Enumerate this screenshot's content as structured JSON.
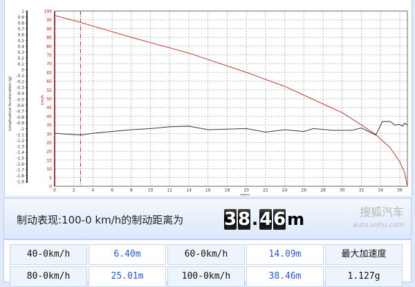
{
  "chart_data": {
    "type": "line",
    "xlabel": "meters",
    "ylabel_left": "Longitudinal Acceleration (g)",
    "ylabel_right": "km/h",
    "x_ticks": [
      0,
      2,
      4,
      6,
      8,
      10,
      12,
      14,
      16,
      18,
      20,
      22,
      24,
      26,
      28,
      30,
      32,
      34,
      36
    ],
    "xlim": [
      0,
      36.8
    ],
    "speed_ylim": [
      0,
      100
    ],
    "speed_ticks": [
      0,
      5,
      10,
      15,
      20,
      25,
      30,
      35,
      40,
      45,
      50,
      55,
      60,
      65,
      70,
      75,
      80,
      85,
      90,
      95,
      100
    ],
    "accel_ylim": [
      -1.9,
      1
    ],
    "accel_ticks": [
      "1",
      "0.9",
      "0.8",
      "0.7",
      "0.6",
      "0.5",
      "0.4",
      "0.3",
      "0.2",
      "0.1",
      "0",
      "-0.1",
      "-0.2",
      "-0.3",
      "-0.4",
      "-0.5",
      "-0.6",
      "-0.7",
      "-0.8",
      "-0.9",
      "-1",
      "-1.1",
      "-1.2",
      "-1.3",
      "-1.4",
      "-1.5",
      "-1.6",
      "-1.7",
      "-1.8",
      "-1.9"
    ],
    "grid": true,
    "marker_x": 2.7,
    "series": [
      {
        "key": "speed",
        "color": "#c83232",
        "x": [
          0,
          2.7,
          8,
          14,
          20,
          24,
          28,
          30,
          32,
          33.5,
          35,
          36,
          36.5,
          36.8
        ],
        "y": [
          97.5,
          93.5,
          85,
          76,
          65,
          57,
          47,
          42,
          35,
          29.5,
          22,
          14,
          8,
          0
        ]
      },
      {
        "key": "accel",
        "color": "#333333",
        "x": [
          0,
          2.7,
          4,
          8,
          10,
          12,
          14,
          16,
          20,
          22,
          24,
          26,
          27,
          29,
          31,
          32,
          33.5,
          34.2,
          35,
          35.5,
          36,
          36.3,
          36.5,
          36.8
        ],
        "y": [
          -1.08,
          -1.11,
          -1.08,
          -1.02,
          -1.0,
          -0.97,
          -0.96,
          -1.02,
          -1.0,
          -1.06,
          -1.02,
          -1.05,
          -1.0,
          -1.03,
          -1.03,
          -0.99,
          -1.11,
          -0.88,
          -0.88,
          -0.94,
          -0.93,
          -0.96,
          -0.91,
          -0.94
        ]
      }
    ]
  },
  "banner": {
    "text": "制动表现:100-0 km/h的制动距离为",
    "digits": [
      "3",
      "8",
      ".",
      "4",
      "6"
    ],
    "unit": "m"
  },
  "table": {
    "rows": [
      [
        "40-0km/h",
        "6.40m",
        "60-0km/h",
        "14.09m",
        "最大加速度"
      ],
      [
        "80-0km/h",
        "25.01m",
        "100-0km/h",
        "38.46m",
        "1.127g"
      ]
    ]
  },
  "watermark": {
    "brand": "搜狐汽车",
    "url": "auto.sohu.com"
  }
}
